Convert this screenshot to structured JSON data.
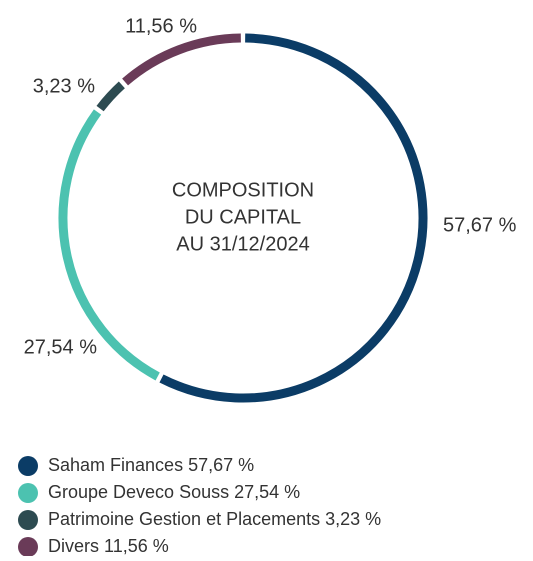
{
  "chart_data": {
    "type": "donut",
    "title": [
      "COMPOSITION",
      "DU CAPITAL",
      "AU 31/12/2024"
    ],
    "categories": [
      "Saham Finances",
      "Groupe Deveco Souss",
      "Patrimoine Gestion et Placements",
      "Divers"
    ],
    "values": [
      57.67,
      27.54,
      3.23,
      11.56
    ],
    "value_labels": [
      "57,67 %",
      "27,54 %",
      "3,23 %",
      "11,56 %"
    ],
    "colors": [
      "#0b3c66",
      "#4cc2b0",
      "#2d4b51",
      "#6a3b58"
    ],
    "legend": "bottom-left"
  }
}
